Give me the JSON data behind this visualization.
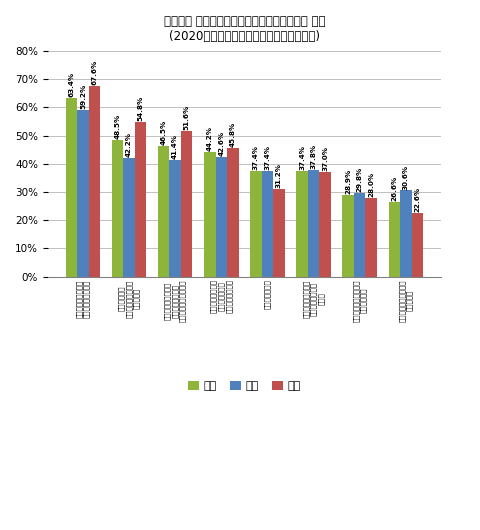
{
  "title_line1": "「若者の 車離れ」と呼ばれる状況についての 意識",
  "title_line2": "(2020年新成人対象、「当てはまる」派率)",
  "全体": [
    63.4,
    48.5,
    46.5,
    44.2,
    37.4,
    37.4,
    28.9,
    26.6
  ],
  "男性": [
    59.2,
    42.2,
    41.4,
    42.6,
    37.4,
    37.8,
    29.8,
    30.6
  ],
  "女性": [
    67.6,
    54.8,
    51.6,
    45.8,
    31.2,
    37.0,
    28.0,
    22.6
  ],
  "全体_labels": [
    "63.4%",
    "48.5%",
    "46.5%",
    "44.2%",
    "37.4%",
    "37.4%",
    "28.9%",
    "26.6%"
  ],
  "男性_labels": [
    "59.2%",
    "42.2%",
    "41.4%",
    "42.6%",
    "37.4%",
    "37.8%",
    "29.8%",
    "30.6%"
  ],
  "女性_labels": [
    "67.6%",
    "54.8%",
    "51.6%",
    "45.8%",
    "31.2%",
    "37.0%",
    "28.0%",
    "22.6%"
  ],
  "xtick_labels": [
    "経済的余裕が無くて\nの車を保有できない",
    "レンタカーの\n利用で車を保有する\n必要がない",
    "カーシェアリングを\n利用しているため\n保有をしなくてもいい",
    "メーカーにとって\n魅力的な車種の\n回転が遅いと思う",
    "自動車前置き」",
    "マニュアルの操作を\n楽しむ車が少なく\nなった",
    "いつかは車に乗りたい\nと思う若者層",
    "普段から車に乗らない\nことが多い"
  ],
  "color_zentai": "#8db53c",
  "color_dansei": "#4f81bd",
  "color_josei": "#c0504d",
  "ylim": [
    0,
    80
  ],
  "yticks": [
    0,
    10,
    20,
    30,
    40,
    50,
    60,
    70,
    80
  ],
  "legend_labels": [
    "全体",
    "男性",
    "女性"
  ],
  "bar_width": 0.25
}
